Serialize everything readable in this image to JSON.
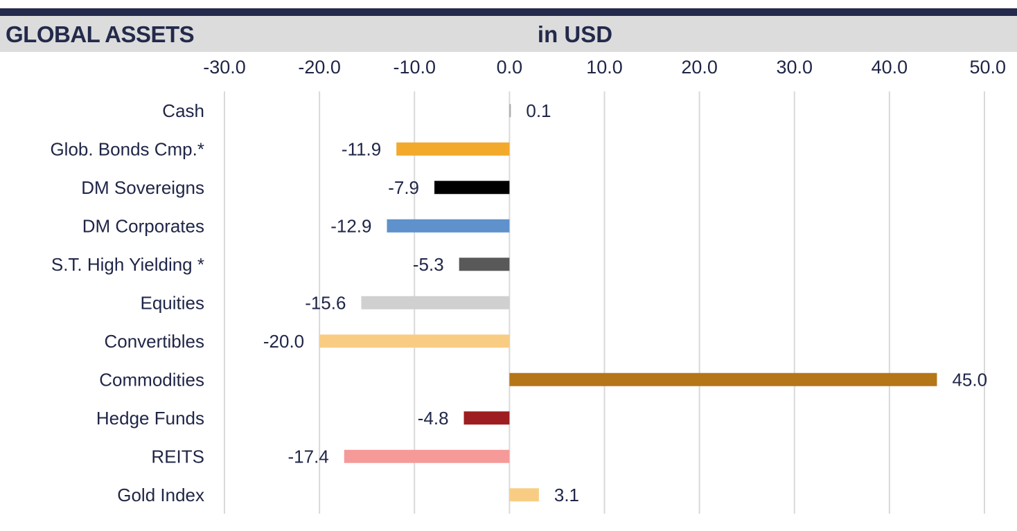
{
  "header": {
    "title": "GLOBAL ASSETS",
    "subtitle": "in USD"
  },
  "chart_data": {
    "type": "bar",
    "orientation": "horizontal",
    "title": "GLOBAL ASSETS",
    "subtitle": "in USD",
    "xlim": [
      -30,
      50
    ],
    "x_ticks": [
      "-30.0",
      "-20.0",
      "-10.0",
      "0.0",
      "10.0",
      "20.0",
      "30.0",
      "40.0",
      "50.0"
    ],
    "x_tick_values": [
      -30,
      -20,
      -10,
      0,
      10,
      20,
      30,
      40,
      50
    ],
    "grid": "vertical",
    "categories": [
      "Cash",
      "Glob. Bonds Cmp.*",
      "DM Sovereigns",
      "DM Corporates",
      "S.T. High Yielding *",
      "Equities",
      "Convertibles",
      "Commodities",
      "Hedge Funds",
      "REITS",
      "Gold Index"
    ],
    "values": [
      0.1,
      -11.9,
      -7.9,
      -12.9,
      -5.3,
      -15.6,
      -20.0,
      45.0,
      -4.8,
      -17.4,
      3.1
    ],
    "value_labels": [
      "0.1",
      "-11.9",
      "-7.9",
      "-12.9",
      "-5.3",
      "-15.6",
      "-20.0",
      "45.0",
      "-4.8",
      "-17.4",
      "3.1"
    ],
    "colors": [
      "#a6a6a6",
      "#f2a92c",
      "#000000",
      "#5f91cc",
      "#595959",
      "#d0d0d0",
      "#f8cd83",
      "#b57618",
      "#9d1d20",
      "#f59a98",
      "#f8cd83"
    ]
  }
}
